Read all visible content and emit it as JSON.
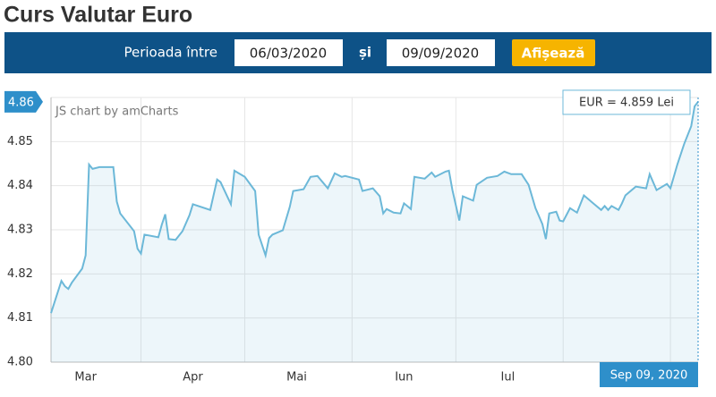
{
  "header": {
    "title": "Curs Valutar Euro",
    "period_label": "Perioada între",
    "from": "06/03/2020",
    "and_label": "și",
    "to": "09/09/2020",
    "button": "Afișează"
  },
  "chart_data": {
    "type": "area",
    "credit": "JS chart by amCharts",
    "color": "#6cb8d8",
    "x": [
      "2020-03-06",
      "2020-03-09",
      "2020-03-10",
      "2020-03-11",
      "2020-03-12",
      "2020-03-15",
      "2020-03-16",
      "2020-03-17",
      "2020-03-18",
      "2020-03-20",
      "2020-03-24",
      "2020-03-25",
      "2020-03-26",
      "2020-03-30",
      "2020-03-31",
      "2020-04-01",
      "2020-04-02",
      "2020-04-06",
      "2020-04-07",
      "2020-04-08",
      "2020-04-09",
      "2020-04-11",
      "2020-04-13",
      "2020-04-15",
      "2020-04-16",
      "2020-04-21",
      "2020-04-23",
      "2020-04-24",
      "2020-04-27",
      "2020-04-28",
      "2020-05-01",
      "2020-05-04",
      "2020-05-05",
      "2020-05-07",
      "2020-05-08",
      "2020-05-09",
      "2020-05-12",
      "2020-05-14",
      "2020-05-15",
      "2020-05-18",
      "2020-05-20",
      "2020-05-22",
      "2020-05-25",
      "2020-05-27",
      "2020-05-29",
      "2020-05-30",
      "2020-06-03",
      "2020-06-04",
      "2020-06-07",
      "2020-06-09",
      "2020-06-10",
      "2020-06-11",
      "2020-06-13",
      "2020-06-15",
      "2020-06-16",
      "2020-06-18",
      "2020-06-19",
      "2020-06-22",
      "2020-06-24",
      "2020-06-25",
      "2020-06-28",
      "2020-06-29",
      "2020-06-30",
      "2020-07-02",
      "2020-07-03",
      "2020-07-06",
      "2020-07-07",
      "2020-07-10",
      "2020-07-13",
      "2020-07-15",
      "2020-07-17",
      "2020-07-20",
      "2020-07-22",
      "2020-07-24",
      "2020-07-26",
      "2020-07-27",
      "2020-07-28",
      "2020-07-30",
      "2020-07-31",
      "2020-08-01",
      "2020-08-03",
      "2020-08-05",
      "2020-08-07",
      "2020-08-10",
      "2020-08-12",
      "2020-08-13",
      "2020-08-14",
      "2020-08-15",
      "2020-08-17",
      "2020-08-18",
      "2020-08-19",
      "2020-08-22",
      "2020-08-25",
      "2020-08-26",
      "2020-08-28",
      "2020-08-31",
      "2020-09-01",
      "2020-09-03",
      "2020-09-05",
      "2020-09-07",
      "2020-09-08",
      "2020-09-09"
    ],
    "values": [
      4.8111,
      4.8184,
      4.8172,
      4.8166,
      4.818,
      4.8212,
      4.8242,
      4.8448,
      4.8438,
      4.8442,
      4.8442,
      4.8364,
      4.8337,
      4.8297,
      4.8257,
      4.8246,
      4.8289,
      4.8283,
      4.8311,
      4.8335,
      4.8279,
      4.8277,
      4.8297,
      4.8333,
      4.8358,
      4.8345,
      4.8414,
      4.8408,
      4.8358,
      4.8434,
      4.842,
      4.8388,
      4.8289,
      4.8242,
      4.8281,
      4.8289,
      4.8299,
      4.8352,
      4.8388,
      4.8392,
      4.842,
      4.8422,
      4.8394,
      4.8428,
      4.842,
      4.8422,
      4.8414,
      4.8388,
      4.8394,
      4.8376,
      4.8337,
      4.8347,
      4.8339,
      4.8337,
      4.836,
      4.8347,
      4.842,
      4.8416,
      4.843,
      4.842,
      4.8432,
      4.8434,
      4.839,
      4.8321,
      4.8376,
      4.8366,
      4.8402,
      4.8418,
      4.8422,
      4.8432,
      4.8426,
      4.8426,
      4.8402,
      4.8349,
      4.8313,
      4.8279,
      4.8337,
      4.8341,
      4.8321,
      4.8319,
      4.8349,
      4.8339,
      4.8378,
      4.8358,
      4.8345,
      4.8354,
      4.8345,
      4.8354,
      4.8345,
      4.836,
      4.8378,
      4.8398,
      4.8394,
      4.8426,
      4.839,
      4.8404,
      4.8394,
      4.8448,
      4.8495,
      4.8535,
      4.858,
      4.859
    ],
    "xlim": [
      "2020-03-06",
      "2020-09-09"
    ],
    "xticks": [
      {
        "value": "2020-03-16",
        "label": "Mar"
      },
      {
        "value": "2020-04-16",
        "label": "Apr"
      },
      {
        "value": "2020-05-16",
        "label": "Mai"
      },
      {
        "value": "2020-06-16",
        "label": "Iun"
      },
      {
        "value": "2020-07-16",
        "label": "Iul"
      }
    ],
    "xgrid": [
      "2020-04-01",
      "2020-05-01",
      "2020-06-01",
      "2020-07-01",
      "2020-08-01",
      "2020-09-01"
    ],
    "ylim": [
      4.8,
      4.86
    ],
    "yticks": [
      {
        "value": 4.8,
        "label": "4.80"
      },
      4.81,
      4.82,
      4.83,
      4.84,
      4.85,
      4.86
    ],
    "grid": true,
    "cursor": {
      "value": 4.859,
      "y_label": "4.86",
      "balloon": "EUR = 4.859 Lei",
      "date_label": "Sep 09, 2020"
    }
  }
}
